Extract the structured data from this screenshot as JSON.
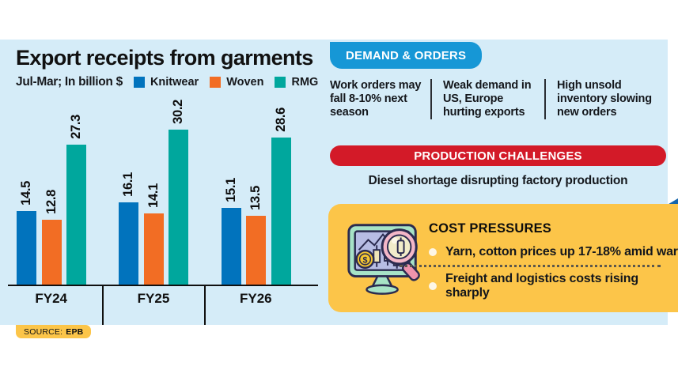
{
  "colors": {
    "panel_bg": "#d5ecf8",
    "knitwear": "#0173bd",
    "woven": "#f26d24",
    "rmg": "#00a79d",
    "demand_badge_bg": "#1697d6",
    "production_badge_bg": "#d31a28",
    "cost_panel_bg": "#fcc549",
    "source_badge_bg": "#fcc549",
    "corner_triangle": "#1565ab"
  },
  "chart": {
    "title": "Export receipts from garments",
    "subtitle": "Jul-Mar; In billion $",
    "legend": [
      {
        "label": "Knitwear",
        "color": "#0173bd"
      },
      {
        "label": "Woven",
        "color": "#f26d24"
      },
      {
        "label": "RMG",
        "color": "#00a79d"
      }
    ],
    "source_label": "SOURCE:",
    "source_value": "EPB"
  },
  "chart_data": {
    "type": "bar",
    "title": "Export receipts from garments",
    "subtitle": "Jul-Mar; In billion $",
    "categories": [
      "FY24",
      "FY25",
      "FY26"
    ],
    "series": [
      {
        "name": "Knitwear",
        "color": "#0173bd",
        "values": [
          14.5,
          16.1,
          15.1
        ]
      },
      {
        "name": "Woven",
        "color": "#f26d24",
        "values": [
          12.8,
          14.1,
          13.5
        ]
      },
      {
        "name": "RMG",
        "color": "#00a79d",
        "values": [
          27.3,
          30.2,
          28.6
        ]
      }
    ],
    "ylim": [
      0,
      32
    ],
    "value_labels": true,
    "legend_position": "top",
    "grid": false,
    "source": "EPB"
  },
  "demand_orders": {
    "heading": "DEMAND & ORDERS",
    "items": [
      "Work orders may fall 8-10% next season",
      "Weak demand in US, Europe hurting exports",
      "High unsold inventory slowing new orders"
    ]
  },
  "production_challenges": {
    "heading": "PRODUCTION CHALLENGES",
    "text": "Diesel shortage disrupting factory production"
  },
  "cost_pressures": {
    "heading": "COST PRESSURES",
    "bullets": [
      "Yarn, cotton prices up 17-18% amid war",
      "Freight and logistics costs rising sharply"
    ]
  }
}
